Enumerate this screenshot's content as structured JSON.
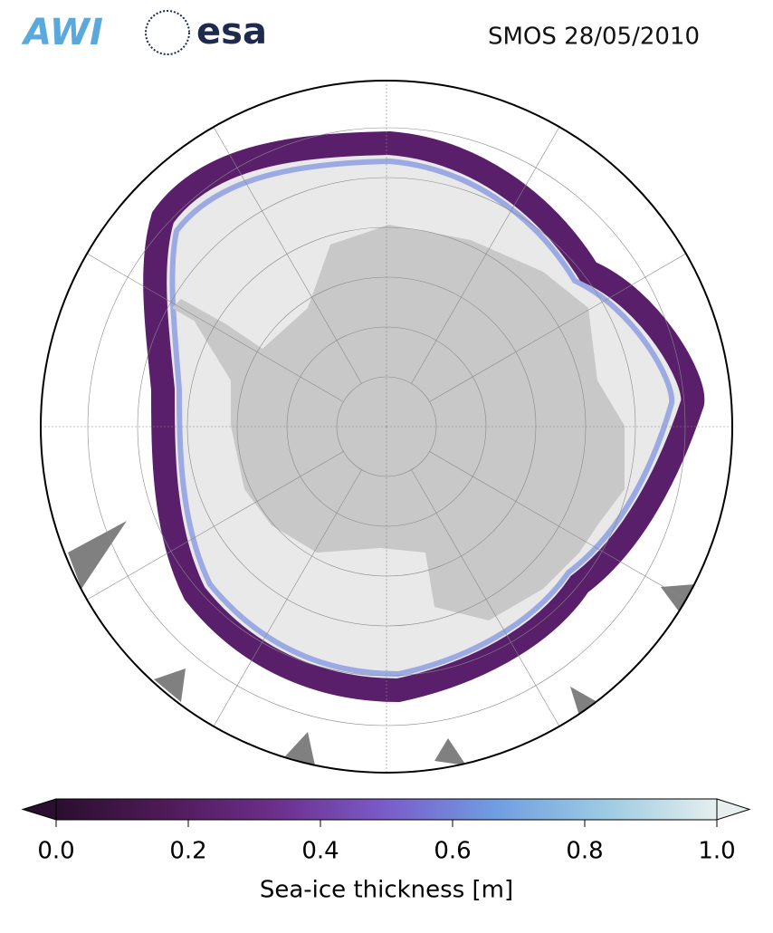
{
  "header": {
    "logo_left": "AWI",
    "logo_right": "esa",
    "title": "SMOS 28/05/2010"
  },
  "colorbar": {
    "label": "Sea-ice thickness [m]",
    "lim": [
      0,
      1
    ],
    "colors": [
      "#2a0f2e",
      "#4f1a58",
      "#6c2f8c",
      "#7a5ccb",
      "#6f9ee2",
      "#9dcbe3",
      "#e6efee"
    ],
    "ticks": [
      {
        "value": 0,
        "label": "0.0"
      },
      {
        "value": 0.2,
        "label": "0.2"
      },
      {
        "value": 0.4,
        "label": "0.4"
      },
      {
        "value": 0.6,
        "label": "0.6"
      },
      {
        "value": 0.8,
        "label": "0.8"
      },
      {
        "value": 1,
        "label": "1.0"
      }
    ]
  }
}
